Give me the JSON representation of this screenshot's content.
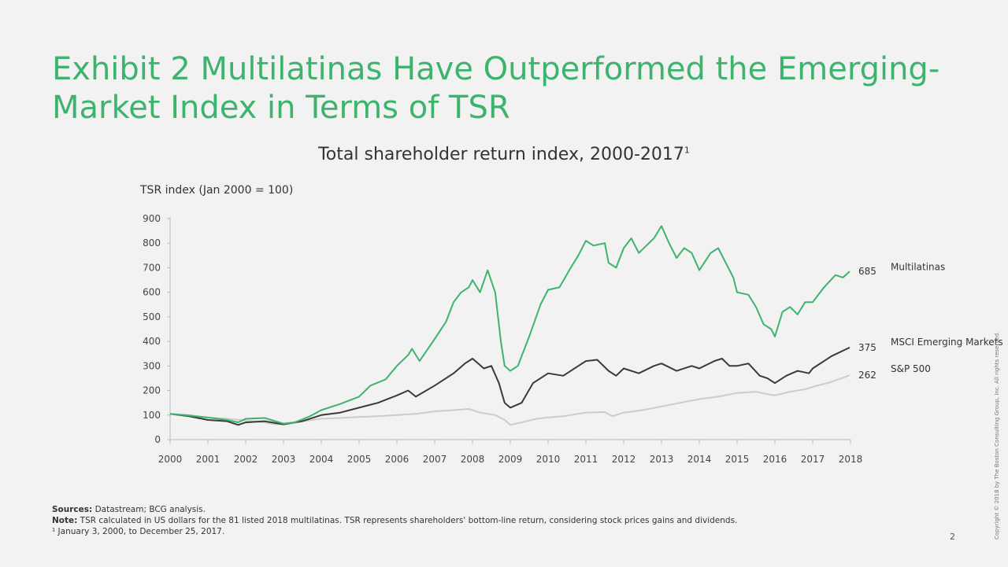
{
  "title": "Exhibit 2 Multilatinas Have Outperformed the Emerging-Market Index in Terms of TSR",
  "subtitle": "Total shareholder return index, 2000-2017",
  "subtitle_sup": "1",
  "footer": {
    "sources_label": "Sources:",
    "sources_text": " Datastream; BCG analysis.",
    "note_label": "Note:",
    "note_text": " TSR calculated in US dollars for the 81 listed 2018 multilatinas. TSR represents shareholders' bottom-line return, considering stock prices gains and dividends.",
    "footnote": "¹ January 3, 2000, to December 25, 2017."
  },
  "page_number": "2",
  "copyright": "Copyright © 2018 by The Boston Consulting Group, Inc. All rights reserved.",
  "colors": {
    "multilatinas": "#3db46d",
    "msci": "#3a3a3a",
    "sp500": "#cccccc",
    "title": "#3db46d"
  },
  "chart_data": {
    "type": "line",
    "ylabel": "TSR index (Jan 2000 = 100)",
    "xlabel": "",
    "ylim": [
      0,
      900
    ],
    "xlim": [
      2000,
      2018
    ],
    "yticks": [
      0,
      100,
      200,
      300,
      400,
      500,
      600,
      700,
      800,
      900
    ],
    "xticks": [
      "2000",
      "2001",
      "2002",
      "2003",
      "2004",
      "2005",
      "2006",
      "2007",
      "2008",
      "2009",
      "2010",
      "2011",
      "2012",
      "2013",
      "2014",
      "2015",
      "2016",
      "2017",
      "2018"
    ],
    "grid": false,
    "legend": "end-of-line labels",
    "series": [
      {
        "name": "Multilatinas",
        "end_label": "685",
        "points": [
          [
            2000,
            105
          ],
          [
            2000.5,
            98
          ],
          [
            2001,
            90
          ],
          [
            2001.5,
            80
          ],
          [
            2001.8,
            70
          ],
          [
            2002,
            85
          ],
          [
            2002.5,
            88
          ],
          [
            2003,
            65
          ],
          [
            2003.3,
            70
          ],
          [
            2003.7,
            95
          ],
          [
            2004,
            120
          ],
          [
            2004.5,
            145
          ],
          [
            2005,
            175
          ],
          [
            2005.3,
            220
          ],
          [
            2005.7,
            245
          ],
          [
            2006,
            300
          ],
          [
            2006.3,
            345
          ],
          [
            2006.4,
            370
          ],
          [
            2006.6,
            320
          ],
          [
            2007,
            410
          ],
          [
            2007.3,
            480
          ],
          [
            2007.5,
            560
          ],
          [
            2007.7,
            600
          ],
          [
            2007.9,
            620
          ],
          [
            2008,
            650
          ],
          [
            2008.2,
            600
          ],
          [
            2008.4,
            690
          ],
          [
            2008.6,
            600
          ],
          [
            2008.75,
            400
          ],
          [
            2008.85,
            300
          ],
          [
            2009,
            280
          ],
          [
            2009.2,
            300
          ],
          [
            2009.5,
            420
          ],
          [
            2009.8,
            550
          ],
          [
            2010,
            610
          ],
          [
            2010.3,
            620
          ],
          [
            2010.6,
            700
          ],
          [
            2010.8,
            750
          ],
          [
            2011,
            810
          ],
          [
            2011.2,
            790
          ],
          [
            2011.5,
            800
          ],
          [
            2011.6,
            720
          ],
          [
            2011.8,
            700
          ],
          [
            2012,
            780
          ],
          [
            2012.2,
            820
          ],
          [
            2012.4,
            760
          ],
          [
            2012.6,
            790
          ],
          [
            2012.8,
            820
          ],
          [
            2013,
            870
          ],
          [
            2013.2,
            800
          ],
          [
            2013.4,
            740
          ],
          [
            2013.6,
            780
          ],
          [
            2013.8,
            760
          ],
          [
            2014,
            690
          ],
          [
            2014.3,
            760
          ],
          [
            2014.5,
            780
          ],
          [
            2014.7,
            720
          ],
          [
            2014.9,
            660
          ],
          [
            2015,
            600
          ],
          [
            2015.3,
            590
          ],
          [
            2015.5,
            540
          ],
          [
            2015.7,
            470
          ],
          [
            2015.9,
            450
          ],
          [
            2016,
            420
          ],
          [
            2016.2,
            520
          ],
          [
            2016.4,
            540
          ],
          [
            2016.6,
            510
          ],
          [
            2016.8,
            560
          ],
          [
            2017,
            560
          ],
          [
            2017.3,
            620
          ],
          [
            2017.6,
            670
          ],
          [
            2017.8,
            660
          ],
          [
            2017.98,
            685
          ]
        ]
      },
      {
        "name": "MSCI Emerging Markets",
        "end_label": "375",
        "points": [
          [
            2000,
            105
          ],
          [
            2000.5,
            95
          ],
          [
            2001,
            80
          ],
          [
            2001.5,
            75
          ],
          [
            2001.8,
            60
          ],
          [
            2002,
            70
          ],
          [
            2002.5,
            75
          ],
          [
            2003,
            62
          ],
          [
            2003.5,
            75
          ],
          [
            2004,
            100
          ],
          [
            2004.5,
            110
          ],
          [
            2005,
            130
          ],
          [
            2005.5,
            150
          ],
          [
            2006,
            180
          ],
          [
            2006.3,
            200
          ],
          [
            2006.5,
            175
          ],
          [
            2007,
            220
          ],
          [
            2007.5,
            270
          ],
          [
            2007.8,
            310
          ],
          [
            2008,
            330
          ],
          [
            2008.3,
            290
          ],
          [
            2008.5,
            300
          ],
          [
            2008.7,
            230
          ],
          [
            2008.85,
            150
          ],
          [
            2009,
            130
          ],
          [
            2009.3,
            150
          ],
          [
            2009.6,
            230
          ],
          [
            2009.9,
            260
          ],
          [
            2010,
            270
          ],
          [
            2010.4,
            260
          ],
          [
            2010.8,
            300
          ],
          [
            2011,
            320
          ],
          [
            2011.3,
            325
          ],
          [
            2011.6,
            280
          ],
          [
            2011.8,
            260
          ],
          [
            2012,
            290
          ],
          [
            2012.4,
            270
          ],
          [
            2012.8,
            300
          ],
          [
            2013,
            310
          ],
          [
            2013.4,
            280
          ],
          [
            2013.8,
            300
          ],
          [
            2014,
            290
          ],
          [
            2014.4,
            320
          ],
          [
            2014.6,
            330
          ],
          [
            2014.8,
            300
          ],
          [
            2015,
            300
          ],
          [
            2015.3,
            310
          ],
          [
            2015.6,
            260
          ],
          [
            2015.8,
            250
          ],
          [
            2016,
            230
          ],
          [
            2016.3,
            260
          ],
          [
            2016.6,
            280
          ],
          [
            2016.9,
            270
          ],
          [
            2017,
            290
          ],
          [
            2017.5,
            340
          ],
          [
            2017.98,
            375
          ]
        ]
      },
      {
        "name": "S&P 500",
        "end_label": "262",
        "points": [
          [
            2000,
            105
          ],
          [
            2000.5,
            100
          ],
          [
            2001,
            90
          ],
          [
            2001.5,
            85
          ],
          [
            2002,
            78
          ],
          [
            2002.5,
            70
          ],
          [
            2002.8,
            62
          ],
          [
            2003,
            65
          ],
          [
            2003.5,
            75
          ],
          [
            2004,
            85
          ],
          [
            2004.5,
            88
          ],
          [
            2005,
            92
          ],
          [
            2005.5,
            95
          ],
          [
            2006,
            100
          ],
          [
            2006.5,
            105
          ],
          [
            2007,
            115
          ],
          [
            2007.5,
            120
          ],
          [
            2007.9,
            125
          ],
          [
            2008.2,
            110
          ],
          [
            2008.6,
            100
          ],
          [
            2008.85,
            80
          ],
          [
            2009,
            60
          ],
          [
            2009.3,
            70
          ],
          [
            2009.7,
            85
          ],
          [
            2010,
            90
          ],
          [
            2010.4,
            95
          ],
          [
            2010.8,
            105
          ],
          [
            2011,
            110
          ],
          [
            2011.5,
            112
          ],
          [
            2011.7,
            95
          ],
          [
            2012,
            110
          ],
          [
            2012.5,
            120
          ],
          [
            2013,
            135
          ],
          [
            2013.5,
            150
          ],
          [
            2014,
            165
          ],
          [
            2014.5,
            175
          ],
          [
            2015,
            190
          ],
          [
            2015.5,
            195
          ],
          [
            2015.8,
            185
          ],
          [
            2016,
            180
          ],
          [
            2016.4,
            195
          ],
          [
            2016.8,
            205
          ],
          [
            2017,
            215
          ],
          [
            2017.5,
            235
          ],
          [
            2017.98,
            262
          ]
        ]
      }
    ]
  }
}
